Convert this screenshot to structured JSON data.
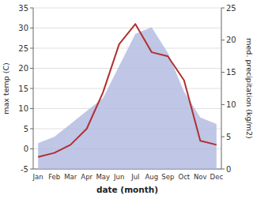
{
  "chart_data": {
    "type": "line",
    "xlabel": "date (month)",
    "ylabel": "max temp (C)",
    "y2label": "med. precipitation (kg/m2)",
    "categories": [
      "Jan",
      "Feb",
      "Mar",
      "Apr",
      "May",
      "Jun",
      "Jul",
      "Aug",
      "Sep",
      "Oct",
      "Nov",
      "Dec"
    ],
    "series": [
      {
        "type": "area",
        "axis": "y2",
        "color": "#b0b8e0",
        "values": [
          4,
          5,
          7,
          9,
          11,
          16,
          21,
          22,
          18,
          12,
          8,
          7
        ]
      },
      {
        "type": "line",
        "color": "#b03030",
        "values": [
          -2,
          -1,
          1,
          5,
          14,
          26,
          31,
          24,
          23,
          17,
          2,
          1
        ]
      }
    ],
    "ylim": [
      -5,
      35
    ],
    "yticks": [
      -5,
      0,
      5,
      10,
      15,
      20,
      25,
      30,
      35
    ],
    "y2lim": [
      0,
      25
    ],
    "y2ticks": [
      0,
      5,
      10,
      15,
      20,
      25
    ],
    "grid": true
  }
}
